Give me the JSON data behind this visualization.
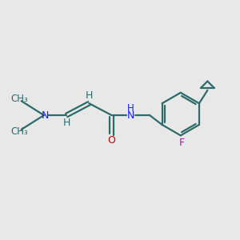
{
  "background_color": "#e8e8e8",
  "bond_color": "#2d6b6b",
  "n_color": "#1a1aff",
  "o_color": "#cc0000",
  "f_color": "#cc00cc",
  "line_width": 1.6,
  "font_size": 9,
  "figsize": [
    3.0,
    3.0
  ],
  "dpi": 100,
  "xlim": [
    0,
    10
  ],
  "ylim": [
    0,
    10
  ]
}
